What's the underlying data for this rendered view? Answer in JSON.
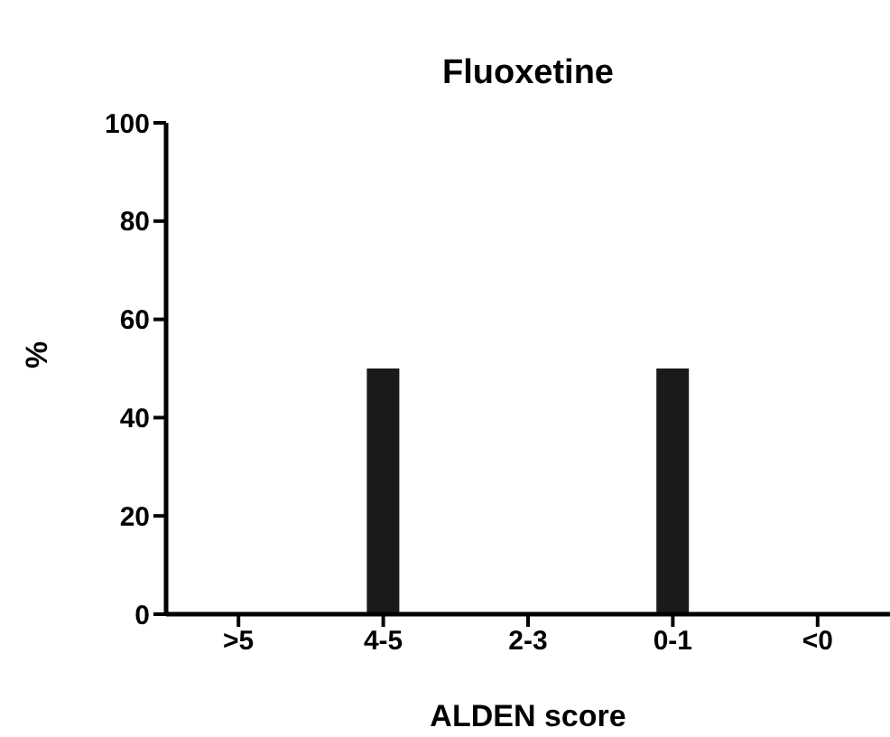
{
  "chart_data": {
    "type": "bar",
    "title": "Fluoxetine",
    "xlabel": "ALDEN score",
    "ylabel": "%",
    "categories": [
      ">5",
      "4-5",
      "2-3",
      "0-1",
      "<0"
    ],
    "values": [
      0,
      50,
      0,
      50,
      0
    ],
    "color": "#1a1a1a",
    "ylim": [
      0,
      100
    ],
    "yticks": [
      0,
      20,
      40,
      60,
      80,
      100
    ],
    "grid": false
  }
}
